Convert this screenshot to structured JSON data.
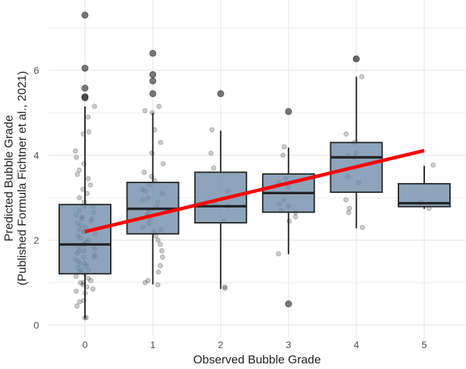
{
  "chart_data": {
    "type": "box",
    "xlabel": "Observed Bubble Grade",
    "ylabel_lines": [
      "Predicted Bubble Grade",
      "(Published Formula Fichtner et al., 2021)"
    ],
    "categories": [
      "0",
      "1",
      "2",
      "3",
      "4",
      "5"
    ],
    "ylim": [
      -0.1,
      7.65
    ],
    "yticks": [
      0,
      2,
      4,
      6
    ],
    "ytick_labels": [
      "0",
      "2",
      "4",
      "6"
    ],
    "grid": true,
    "box_color": "#6d8aa8",
    "trend_color": "#ff0000",
    "boxes": [
      {
        "q1": 1.21,
        "median": 1.9,
        "q3": 2.84,
        "whisker_low": 0.16,
        "whisker_high": 5.15,
        "outliers": [
          7.3,
          6.05,
          5.58,
          5.38,
          5.35
        ]
      },
      {
        "q1": 2.15,
        "median": 2.74,
        "q3": 3.36,
        "whisker_low": 0.96,
        "whisker_high": 5.0,
        "outliers": [
          6.4,
          5.9,
          5.75,
          5.45
        ]
      },
      {
        "q1": 2.41,
        "median": 2.8,
        "q3": 3.6,
        "whisker_low": 0.85,
        "whisker_high": 4.58,
        "outliers": [
          5.45
        ]
      },
      {
        "q1": 2.66,
        "median": 3.11,
        "q3": 3.56,
        "whisker_low": 1.67,
        "whisker_high": 4.18,
        "outliers": [
          5.03,
          0.5
        ]
      },
      {
        "q1": 3.13,
        "median": 3.95,
        "q3": 4.3,
        "whisker_low": 2.28,
        "whisker_high": 5.85,
        "outliers": [
          6.27
        ]
      },
      {
        "q1": 2.79,
        "median": 2.87,
        "q3": 3.33,
        "whisker_low": 2.74,
        "whisker_high": 3.75,
        "outliers": []
      }
    ],
    "points": [
      [
        0.17,
        0.18,
        0.45,
        0.55,
        0.58,
        0.75,
        0.8,
        0.85,
        0.9,
        0.95,
        1.0,
        1.05,
        1.1,
        1.15,
        1.2,
        1.25,
        1.3,
        1.35,
        1.4,
        1.45,
        1.5,
        1.55,
        1.6,
        1.65,
        1.7,
        1.75,
        1.8,
        1.85,
        1.9,
        1.95,
        2.0,
        2.05,
        2.1,
        2.15,
        2.2,
        2.25,
        2.3,
        2.35,
        2.4,
        2.45,
        2.5,
        2.55,
        2.6,
        2.65,
        2.7,
        2.8,
        2.9,
        3.0,
        3.1,
        3.2,
        3.3,
        3.45,
        3.55,
        3.65,
        3.8,
        3.95,
        4.1,
        4.5,
        4.55,
        4.9,
        5.15,
        1.3,
        1.6,
        1.9,
        2.2,
        2.5,
        2.8,
        1.0,
        1.45,
        1.75
      ],
      [
        0.95,
        1.0,
        1.05,
        1.25,
        1.4,
        1.6,
        1.75,
        1.9,
        2.0,
        2.1,
        2.2,
        2.3,
        2.4,
        2.5,
        2.6,
        2.7,
        2.8,
        2.9,
        3.0,
        3.1,
        3.2,
        3.3,
        3.4,
        3.5,
        3.6,
        3.8,
        4.05,
        4.3,
        4.6,
        5.0,
        5.05,
        5.15,
        2.25,
        2.65,
        2.95,
        3.15
      ],
      [
        0.87,
        0.9,
        2.45,
        2.8,
        2.85,
        3.15,
        3.7,
        4.05,
        4.6
      ],
      [
        1.68,
        2.45,
        2.55,
        2.65,
        2.7,
        2.8,
        2.85,
        2.95,
        3.25,
        3.35,
        3.45,
        4.0,
        4.2
      ],
      [
        2.3,
        2.65,
        2.75,
        2.95,
        3.35,
        3.5,
        3.95,
        4.0,
        4.05,
        4.3,
        4.5,
        5.85,
        6.27
      ],
      [
        2.75,
        2.89,
        3.77
      ]
    ],
    "trend_line": {
      "x": [
        0,
        5
      ],
      "y": [
        2.2,
        4.11
      ]
    }
  }
}
